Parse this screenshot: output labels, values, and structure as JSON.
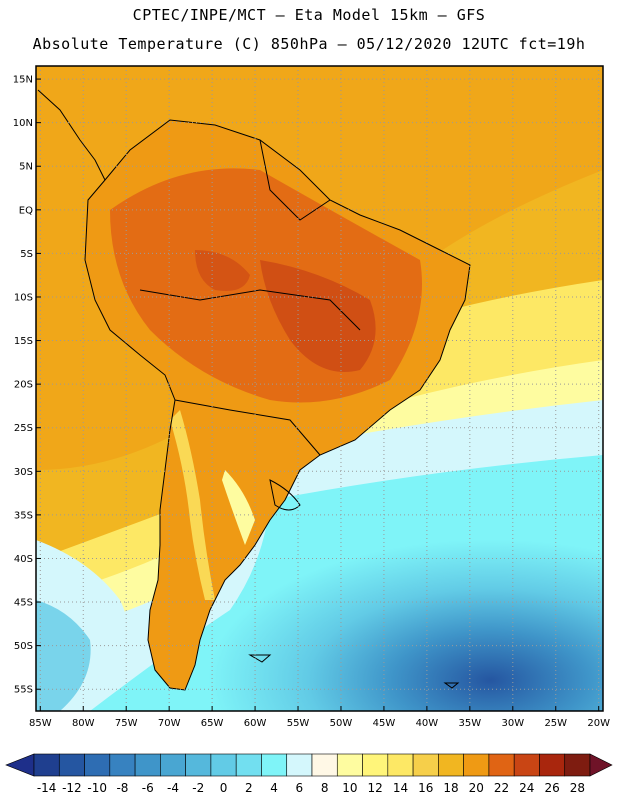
{
  "header": {
    "line1": "CPTEC/INPE/MCT –  Eta Model 15km – GFS",
    "line2": "Absolute Temperature (C) 850hPa – 05/12/2020 12UTC fct=19h"
  },
  "map": {
    "lat_labels": [
      "15N",
      "10N",
      "5N",
      "EQ",
      "5S",
      "10S",
      "15S",
      "20S",
      "25S",
      "30S",
      "35S",
      "40S",
      "45S",
      "50S",
      "55S"
    ],
    "lon_labels": [
      "85W",
      "80W",
      "75W",
      "70W",
      "65W",
      "60W",
      "55W",
      "50W",
      "45W",
      "40W",
      "35W",
      "30W",
      "25W",
      "20W"
    ],
    "lat_values": [
      15,
      10,
      5,
      0,
      -5,
      -10,
      -15,
      -20,
      -25,
      -30,
      -35,
      -40,
      -45,
      -50,
      -55
    ],
    "lon_values": [
      -85,
      -80,
      -75,
      -70,
      -65,
      -60,
      -55,
      -50,
      -45,
      -40,
      -35,
      -30,
      -25,
      -20
    ],
    "extent": {
      "lon_min": -85.5,
      "lon_max": -19.5,
      "lat_min": -57.5,
      "lat_max": 16.5
    }
  },
  "colorbar": {
    "labels": [
      "-14",
      "-12",
      "-10",
      "-8",
      "-6",
      "-4",
      "-2",
      "0",
      "2",
      "4",
      "6",
      "8",
      "10",
      "12",
      "14",
      "16",
      "18",
      "20",
      "22",
      "24",
      "26",
      "28"
    ],
    "colors": [
      "#1f3f8f",
      "#2556a1",
      "#2e6db3",
      "#3782c0",
      "#3f95c9",
      "#49a6d2",
      "#55b8dc",
      "#62cbe6",
      "#72dff0",
      "#7ff4f8",
      "#d4f7fc",
      "#fff8e6",
      "#fefca0",
      "#fff57a",
      "#fde865",
      "#f6cf4a",
      "#f1b621",
      "#ef9a14",
      "#e06414",
      "#c94514",
      "#a9260d",
      "#7e1c10"
    ],
    "under_color": "#1e2f8a",
    "over_color": "#6f1328"
  }
}
